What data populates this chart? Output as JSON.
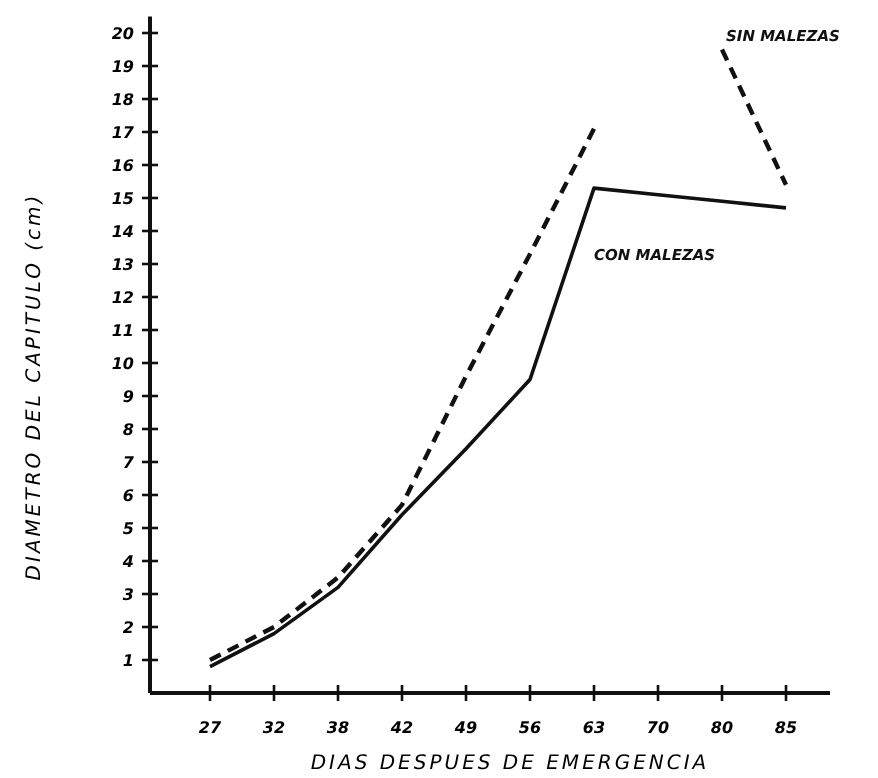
{
  "chart_data": {
    "type": "line",
    "xlabel": "DIAS DESPUES DE EMERGENCIA",
    "ylabel": "DIAMETRO DEL CAPITULO (cm)",
    "categories": [
      "27",
      "32",
      "38",
      "42",
      "49",
      "56",
      "63",
      "70",
      "80",
      "85"
    ],
    "ylim": [
      0,
      20.5
    ],
    "yticks": [
      1,
      2,
      3,
      4,
      5,
      6,
      7,
      8,
      9,
      10,
      11,
      12,
      13,
      14,
      15,
      16,
      17,
      18,
      19,
      20
    ],
    "grid": false,
    "marker": "none",
    "series": [
      {
        "name": "SIN MALEZAS",
        "color": "#111111",
        "line_style": "dashed",
        "values": [
          1.0,
          2.0,
          3.5,
          5.7,
          9.6,
          13.3,
          17.1,
          null,
          19.5,
          15.4
        ]
      },
      {
        "name": "CON MALEZAS",
        "color": "#111111",
        "line_style": "solid",
        "values": [
          0.8,
          1.8,
          3.2,
          5.4,
          7.4,
          9.5,
          15.3,
          15.1,
          14.9,
          14.7
        ]
      }
    ]
  }
}
